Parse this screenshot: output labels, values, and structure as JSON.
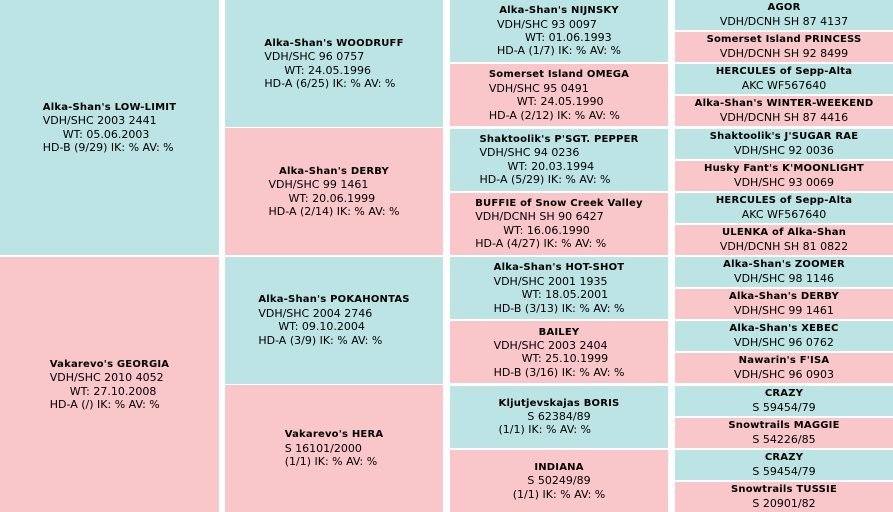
{
  "pedigree": {
    "gen1": [
      {
        "name": "Alka-Shan's LOW-LIMIT",
        "reg": "VDH/SHC 2003 2441",
        "wt": "WT: 05.06.2003",
        "health": "HD-B (9/29) IK: %  AV: %"
      },
      {
        "name": "Vakarevo's GEORGIA",
        "reg": "VDH/SHC 2010 4052",
        "wt": "WT: 27.10.2008",
        "health": "HD-A (/) IK: %  AV: %"
      }
    ],
    "gen2": [
      {
        "name": "Alka-Shan's WOODRUFF",
        "reg": "VDH/SHC 96 0757",
        "wt": "WT: 24.05.1996",
        "health": "HD-A (6/25) IK: %  AV: %"
      },
      {
        "name": "Alka-Shan's DERBY",
        "reg": "VDH/SHC 99 1461",
        "wt": "WT: 20.06.1999",
        "health": "HD-A (2/14) IK: %  AV: %"
      },
      {
        "name": "Alka-Shan's POKAHONTAS",
        "reg": "VDH/SHC 2004 2746",
        "wt": "WT: 09.10.2004",
        "health": "HD-A (3/9) IK: %  AV: %"
      },
      {
        "name": "Vakarevo's HERA",
        "reg": "S 16101/2000",
        "wt": "",
        "health": "(1/1) IK: %  AV: %"
      }
    ],
    "gen3": [
      {
        "name": "Alka-Shan's NIJNSKY",
        "reg": "VDH/SHC 93 0097",
        "wt": "WT: 01.06.1993",
        "health": "HD-A (1/7) IK: %  AV: %"
      },
      {
        "name": "Somerset Island OMEGA",
        "reg": "VDH/SHC 95 0491",
        "wt": "WT: 24.05.1990",
        "health": "HD-A (2/12) IK: %  AV: %"
      },
      {
        "name": "Shaktoolik's P'SGT. PEPPER",
        "reg": "VDH/SHC 94 0236",
        "wt": "WT: 20.03.1994",
        "health": "HD-A (5/29) IK: %  AV: %"
      },
      {
        "name": "BUFFIE of Snow Creek Valley",
        "reg": "VDH/DCNH SH 90 6427",
        "wt": "WT: 16.06.1990",
        "health": "HD-A (4/27) IK: %  AV: %"
      },
      {
        "name": "Alka-Shan's HOT-SHOT",
        "reg": "VDH/SHC 2001 1935",
        "wt": "WT: 18.05.2001",
        "health": "HD-B (3/13) IK: %  AV: %"
      },
      {
        "name": "BAILEY",
        "reg": "VDH/SHC 2003 2404",
        "wt": "WT: 25.10.1999",
        "health": "HD-B (3/16) IK: %  AV: %"
      },
      {
        "name": "Kljutjevskajas BORIS",
        "reg": "S 62384/89",
        "wt": "",
        "health": "(1/1) IK: %  AV: %"
      },
      {
        "name": "INDIANA",
        "reg": "S 50249/89",
        "wt": "",
        "health": "(1/1) IK: %  AV: %"
      }
    ],
    "gen4": [
      {
        "name": "AGOR",
        "reg": "VDH/DCNH SH 87 4137"
      },
      {
        "name": "Somerset Island PRINCESS",
        "reg": "VDH/DCNH SH 92 8499"
      },
      {
        "name": "HERCULES of Sepp-Alta",
        "reg": "AKC WF567640"
      },
      {
        "name": "Alka-Shan's WINTER-WEEKEND",
        "reg": "VDH/DCNH SH 87 4416"
      },
      {
        "name": "Shaktoolik's J'SUGAR RAE",
        "reg": "VDH/SHC 92 0036"
      },
      {
        "name": "Husky Fant's K'MOONLIGHT",
        "reg": "VDH/SHC 93 0069"
      },
      {
        "name": "HERCULES of Sepp-Alta",
        "reg": "AKC WF567640"
      },
      {
        "name": "ULENKA of Alka-Shan",
        "reg": "VDH/DCNH SH 81 0822"
      },
      {
        "name": "Alka-Shan's ZOOMER",
        "reg": "VDH/SHC 98 1146"
      },
      {
        "name": "Alka-Shan's DERBY",
        "reg": "VDH/SHC 99 1461"
      },
      {
        "name": "Alka-Shan's XEBEC",
        "reg": "VDH/SHC 96 0762"
      },
      {
        "name": "Nawarin's F'ISA",
        "reg": "VDH/SHC 96 0903"
      },
      {
        "name": "CRAZY",
        "reg": "S 59454/79"
      },
      {
        "name": "Snowtrails MAGGIE",
        "reg": "S 54226/85"
      },
      {
        "name": "CRAZY",
        "reg": "S 59454/79"
      },
      {
        "name": "Snowtrails TUSSIE",
        "reg": "S 20901/82"
      }
    ]
  },
  "colors": {
    "male": "#bde4e4",
    "female": "#f9c7c9"
  }
}
